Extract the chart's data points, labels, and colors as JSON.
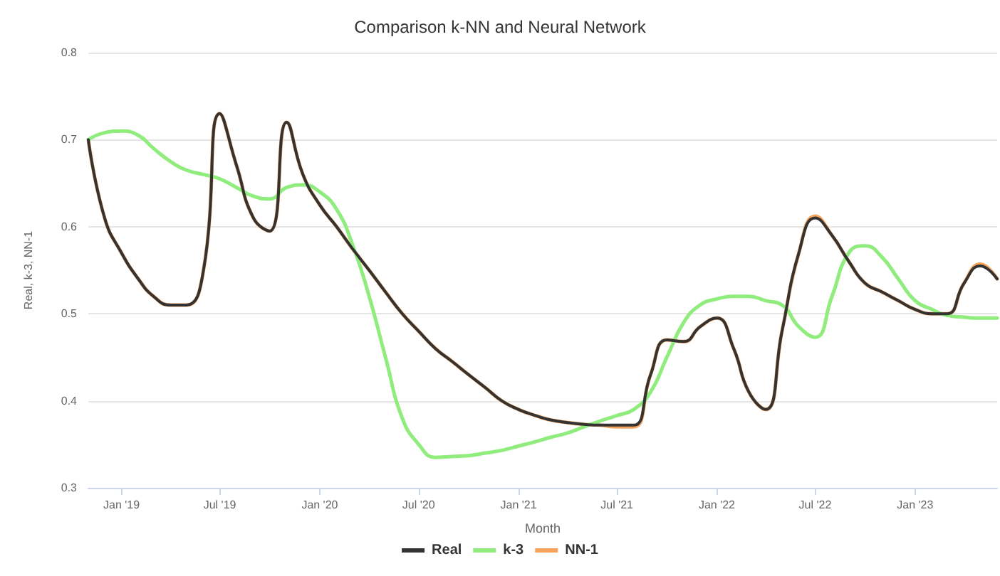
{
  "chart_data": {
    "type": "line",
    "title": "Comparison k-NN and Neural Network",
    "xlabel": "Month",
    "ylabel": "Real, k-3, NN-1",
    "x": [
      "2018-11",
      "2018-12",
      "2019-01",
      "2019-02",
      "2019-03",
      "2019-04",
      "2019-05",
      "2019-06",
      "2019-07",
      "2019-08",
      "2019-09",
      "2019-10",
      "2019-11",
      "2019-12",
      "2020-01",
      "2020-02",
      "2020-03",
      "2020-04",
      "2020-05",
      "2020-06",
      "2020-07",
      "2020-08",
      "2020-09",
      "2020-10",
      "2020-11",
      "2020-12",
      "2021-01",
      "2021-02",
      "2021-03",
      "2021-04",
      "2021-05",
      "2021-06",
      "2021-07",
      "2021-08",
      "2021-09",
      "2021-10",
      "2021-11",
      "2021-12",
      "2022-01",
      "2022-02",
      "2022-03",
      "2022-04",
      "2022-05",
      "2022-06",
      "2022-07",
      "2022-08",
      "2022-09",
      "2022-10",
      "2022-11",
      "2022-12",
      "2023-01",
      "2023-02",
      "2023-03",
      "2023-04",
      "2023-05",
      "2023-06"
    ],
    "series": [
      {
        "name": "Real",
        "color": "#333333",
        "values": [
          0.7,
          0.61,
          0.57,
          0.54,
          0.52,
          0.51,
          0.51,
          0.55,
          0.73,
          0.67,
          0.61,
          0.595,
          0.72,
          0.66,
          0.625,
          0.6,
          0.575,
          0.55,
          0.525,
          0.5,
          0.48,
          0.46,
          0.445,
          0.43,
          0.415,
          0.4,
          0.39,
          0.383,
          0.378,
          0.375,
          0.373,
          0.372,
          0.372,
          0.372,
          0.43,
          0.47,
          0.468,
          0.485,
          0.495,
          0.46,
          0.41,
          0.39,
          0.48,
          0.57,
          0.61,
          0.59,
          0.56,
          0.535,
          0.525,
          0.515,
          0.505,
          0.5,
          0.5,
          0.535,
          0.555,
          0.54
        ]
      },
      {
        "name": "k-3",
        "color": "#90ed7d",
        "values": [
          0.7,
          0.708,
          0.71,
          0.705,
          0.69,
          0.675,
          0.665,
          0.66,
          0.655,
          0.645,
          0.635,
          0.632,
          0.645,
          0.648,
          0.64,
          0.62,
          0.58,
          0.52,
          0.45,
          0.38,
          0.35,
          0.335,
          0.336,
          0.337,
          0.34,
          0.343,
          0.348,
          0.353,
          0.358,
          0.363,
          0.37,
          0.377,
          0.383,
          0.39,
          0.41,
          0.45,
          0.49,
          0.51,
          0.517,
          0.52,
          0.52,
          0.515,
          0.51,
          0.485,
          0.473,
          0.52,
          0.57,
          0.578,
          0.565,
          0.54,
          0.515,
          0.505,
          0.498,
          0.496,
          0.495,
          0.495
        ]
      },
      {
        "name": "NN-1",
        "color": "#f7a35c",
        "values": [
          0.7,
          0.61,
          0.57,
          0.54,
          0.52,
          0.51,
          0.51,
          0.55,
          0.73,
          0.67,
          0.61,
          0.595,
          0.72,
          0.66,
          0.625,
          0.6,
          0.575,
          0.55,
          0.525,
          0.5,
          0.48,
          0.46,
          0.445,
          0.43,
          0.415,
          0.4,
          0.39,
          0.383,
          0.378,
          0.375,
          0.373,
          0.372,
          0.37,
          0.37,
          0.43,
          0.47,
          0.468,
          0.485,
          0.495,
          0.46,
          0.41,
          0.39,
          0.48,
          0.57,
          0.612,
          0.59,
          0.56,
          0.535,
          0.525,
          0.515,
          0.505,
          0.5,
          0.5,
          0.535,
          0.557,
          0.54
        ]
      }
    ],
    "xlim": [
      "2018-11",
      "2023-06"
    ],
    "xticks": [
      {
        "value": "2019-01",
        "label": "Jan '19"
      },
      {
        "value": "2019-07",
        "label": "Jul '19"
      },
      {
        "value": "2020-01",
        "label": "Jan '20"
      },
      {
        "value": "2020-07",
        "label": "Jul '20"
      },
      {
        "value": "2021-01",
        "label": "Jan '21"
      },
      {
        "value": "2021-07",
        "label": "Jul '21"
      },
      {
        "value": "2022-01",
        "label": "Jan '22"
      },
      {
        "value": "2022-07",
        "label": "Jul '22"
      },
      {
        "value": "2023-01",
        "label": "Jan '23"
      }
    ],
    "ylim": [
      0.3,
      0.8
    ],
    "yticks": [
      0.3,
      0.4,
      0.5,
      0.6,
      0.7,
      0.8
    ],
    "grid": "y",
    "legend": "bottom",
    "marker": "none",
    "line_style": "solid"
  }
}
